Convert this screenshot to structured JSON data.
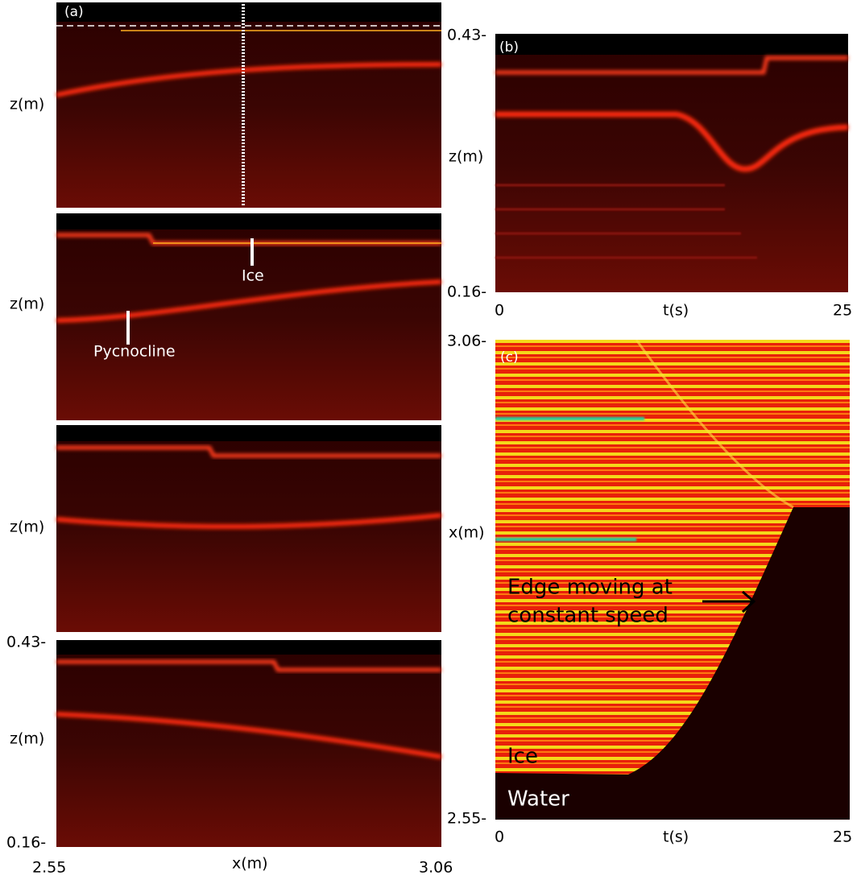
{
  "left_column": {
    "panel_label": "(a)",
    "y_axis_labels": [
      "z(m)",
      "z(m)",
      "z(m)",
      "z(m)"
    ],
    "y_ticks": [
      "0.43-",
      "0.16-"
    ],
    "x_ticks": [
      "2.55",
      "3.06"
    ],
    "x_axis_label": "x(m)",
    "annotations": {
      "ice": "Ice",
      "pycnocline": "Pycnocline"
    }
  },
  "panel_b": {
    "panel_label": "(b)",
    "y_axis_label": "z(m)",
    "y_ticks": [
      "0.43-",
      "0.16-"
    ],
    "x_ticks": [
      "0",
      "25"
    ],
    "x_axis_label": "t(s)"
  },
  "panel_c": {
    "panel_label": "(c)",
    "y_axis_label": "x(m)",
    "y_ticks": [
      "3.06-",
      "2.55-"
    ],
    "x_ticks": [
      "0",
      "25"
    ],
    "x_axis_label": "t(s)",
    "annotations": {
      "edge": [
        "Edge moving at",
        "constant speed"
      ],
      "ice": "Ice",
      "water": "Water"
    }
  }
}
